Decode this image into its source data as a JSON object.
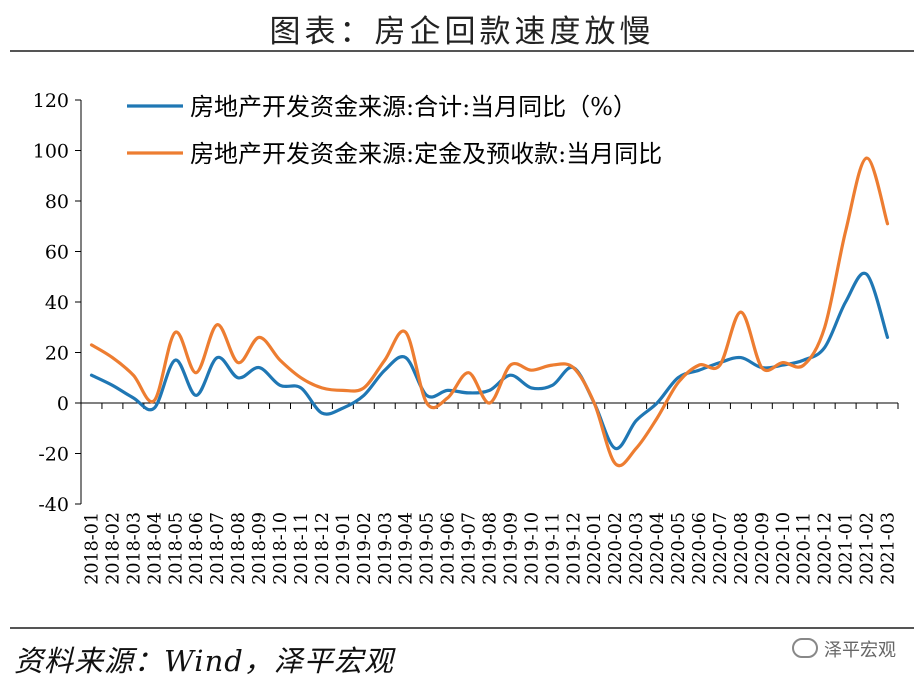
{
  "header": {
    "title": "图表：房企回款速度放慢"
  },
  "footer": {
    "source": "资料来源：Wind，泽平宏观",
    "watermark": "泽平宏观"
  },
  "colors": {
    "series1": "#1f77b4",
    "series2": "#ed7d31",
    "axis": "#000000"
  },
  "chart_data": {
    "type": "line",
    "title": "图表：房企回款速度放慢",
    "xlabel": "",
    "ylabel": "",
    "ylim": [
      -40,
      120
    ],
    "yticks": [
      -40,
      -20,
      0,
      20,
      40,
      60,
      80,
      100,
      120
    ],
    "grid": false,
    "legend_position": "top-left",
    "categories": [
      "2018-01",
      "2018-02",
      "2018-03",
      "2018-04",
      "2018-05",
      "2018-06",
      "2018-07",
      "2018-08",
      "2018-09",
      "2018-10",
      "2018-11",
      "2018-12",
      "2019-01",
      "2019-02",
      "2019-03",
      "2019-04",
      "2019-05",
      "2019-06",
      "2019-07",
      "2019-08",
      "2019-09",
      "2019-10",
      "2019-11",
      "2019-12",
      "2020-01",
      "2020-02",
      "2020-03",
      "2020-04",
      "2020-05",
      "2020-06",
      "2020-07",
      "2020-08",
      "2020-09",
      "2020-10",
      "2020-11",
      "2020-12",
      "2021-01",
      "2021-02",
      "2021-03"
    ],
    "series": [
      {
        "name": "房地产开发资金来源:合计:当月同比（%）",
        "values": [
          11,
          7,
          2,
          -2,
          17,
          3,
          18,
          10,
          14,
          7,
          6,
          -4,
          -2,
          3,
          13,
          18,
          3,
          5,
          4,
          5,
          11,
          6,
          7,
          14,
          0,
          -18,
          -7,
          0,
          10,
          13,
          16,
          18,
          14,
          15,
          17,
          22,
          40,
          51,
          26
        ]
      },
      {
        "name": "房地产开发资金来源:定金及预收款:当月同比",
        "values": [
          23,
          18,
          11,
          1,
          28,
          12,
          31,
          16,
          26,
          17,
          10,
          6,
          5,
          6,
          17,
          28,
          0,
          2,
          12,
          0,
          15,
          13,
          15,
          14,
          0,
          -24,
          -18,
          -6,
          8,
          15,
          15,
          36,
          14,
          16,
          15,
          30,
          68,
          97,
          71
        ]
      }
    ]
  }
}
